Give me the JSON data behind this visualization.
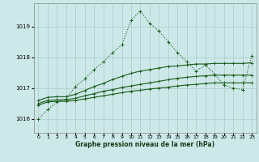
{
  "xlabel": "Graphe pression niveau de la mer (hPa)",
  "x_ticks": [
    0,
    1,
    2,
    3,
    4,
    5,
    6,
    7,
    8,
    9,
    10,
    11,
    12,
    13,
    14,
    15,
    16,
    17,
    18,
    19,
    20,
    21,
    22,
    23
  ],
  "y_ticks": [
    1016,
    1017,
    1018,
    1019
  ],
  "ylim": [
    1015.55,
    1019.75
  ],
  "xlim": [
    -0.5,
    23.5
  ],
  "bg_color": "#cce8e8",
  "grid_color": "#aacccc",
  "line_color": "#1a5c1a",
  "line1": [
    1016.0,
    1016.3,
    1016.55,
    1016.65,
    1017.05,
    1017.3,
    1017.6,
    1017.85,
    1018.15,
    1018.4,
    1019.2,
    1019.5,
    1019.1,
    1018.85,
    1018.5,
    1018.15,
    1017.85,
    1017.55,
    1017.75,
    1017.45,
    1017.1,
    1017.0,
    1016.95,
    1018.05
  ],
  "line2": [
    1016.6,
    1016.7,
    1016.72,
    1016.72,
    1016.8,
    1016.92,
    1017.05,
    1017.15,
    1017.28,
    1017.38,
    1017.48,
    1017.55,
    1017.6,
    1017.65,
    1017.7,
    1017.72,
    1017.75,
    1017.78,
    1017.78,
    1017.8,
    1017.8,
    1017.8,
    1017.8,
    1017.82
  ],
  "line3": [
    1016.5,
    1016.6,
    1016.62,
    1016.62,
    1016.67,
    1016.75,
    1016.82,
    1016.9,
    1016.95,
    1017.02,
    1017.07,
    1017.12,
    1017.17,
    1017.22,
    1017.27,
    1017.32,
    1017.35,
    1017.38,
    1017.4,
    1017.42,
    1017.42,
    1017.42,
    1017.42,
    1017.42
  ],
  "line4": [
    1016.45,
    1016.55,
    1016.57,
    1016.57,
    1016.6,
    1016.65,
    1016.7,
    1016.75,
    1016.8,
    1016.85,
    1016.9,
    1016.93,
    1016.97,
    1017.0,
    1017.03,
    1017.07,
    1017.1,
    1017.12,
    1017.15,
    1017.17,
    1017.17,
    1017.17,
    1017.17,
    1017.17
  ]
}
